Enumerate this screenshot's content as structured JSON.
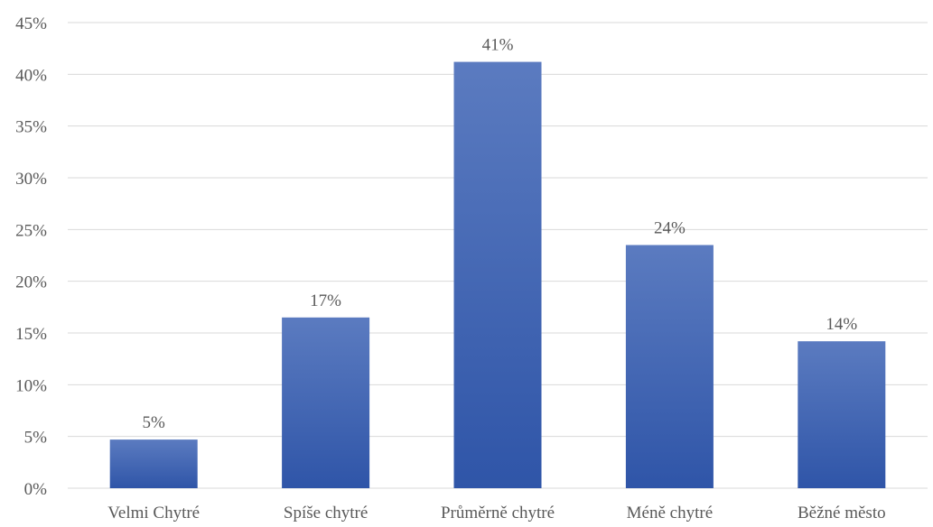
{
  "chart_data": {
    "type": "bar",
    "categories": [
      "Velmi Chytré",
      "Spíše chytré",
      "Průměrně chytré",
      "Méně chytré",
      "Běžné město"
    ],
    "values": [
      4.7,
      16.5,
      41.2,
      23.5,
      14.2
    ],
    "data_labels": [
      "5%",
      "17%",
      "41%",
      "24%",
      "14%"
    ],
    "y_ticks": [
      "0%",
      "5%",
      "10%",
      "15%",
      "20%",
      "25%",
      "30%",
      "35%",
      "40%",
      "45%"
    ],
    "ylim": [
      0,
      45
    ],
    "title": "",
    "xlabel": "",
    "ylabel": "",
    "grid": true,
    "legend": "none",
    "colors": {
      "bar_top": "#5b7bc0",
      "bar_bottom": "#2f55a8",
      "grid": "#d9d9d9",
      "text": "#595959"
    }
  }
}
